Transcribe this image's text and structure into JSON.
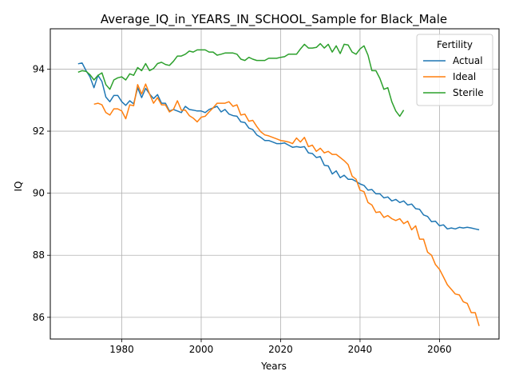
{
  "chart_data": {
    "type": "line",
    "title": "Average_IQ_in_YEARS_IN_SCHOOL_Sample for Black_Male",
    "xlabel": "Years",
    "ylabel": "IQ",
    "xlim": [
      1962,
      2075
    ],
    "ylim": [
      85.3,
      95.3
    ],
    "xticks": [
      1980,
      2000,
      2020,
      2040,
      2060
    ],
    "yticks": [
      86,
      88,
      90,
      92,
      94
    ],
    "grid": true,
    "legend": {
      "title": "Fertility",
      "placement": "top-right"
    },
    "series": [
      {
        "name": "Actual",
        "color": "#1f77b4",
        "points": [
          [
            1969,
            94.17
          ],
          [
            1970,
            94.2
          ],
          [
            1971,
            93.95
          ],
          [
            1972,
            93.75
          ],
          [
            1973,
            93.4
          ],
          [
            1974,
            93.8
          ],
          [
            1975,
            93.6
          ],
          [
            1976,
            93.1
          ],
          [
            1977,
            92.95
          ],
          [
            1978,
            93.15
          ],
          [
            1979,
            93.15
          ],
          [
            1980,
            92.95
          ],
          [
            1981,
            92.83
          ],
          [
            1982,
            92.98
          ],
          [
            1983,
            92.88
          ],
          [
            1984,
            93.4
          ],
          [
            1985,
            93.08
          ],
          [
            1986,
            93.38
          ],
          [
            1987,
            93.2
          ],
          [
            1988,
            93.05
          ],
          [
            1989,
            93.18
          ],
          [
            1990,
            92.9
          ],
          [
            1991,
            92.9
          ],
          [
            1992,
            92.65
          ],
          [
            1993,
            92.7
          ],
          [
            1994,
            92.65
          ],
          [
            1995,
            92.6
          ],
          [
            1996,
            92.8
          ],
          [
            1997,
            92.7
          ],
          [
            1998,
            92.68
          ],
          [
            1999,
            92.65
          ],
          [
            2000,
            92.65
          ],
          [
            2001,
            92.6
          ],
          [
            2002,
            92.7
          ],
          [
            2003,
            92.75
          ],
          [
            2004,
            92.8
          ],
          [
            2005,
            92.62
          ],
          [
            2006,
            92.7
          ],
          [
            2007,
            92.55
          ],
          [
            2008,
            92.5
          ],
          [
            2009,
            92.48
          ],
          [
            2010,
            92.3
          ],
          [
            2011,
            92.28
          ],
          [
            2012,
            92.1
          ],
          [
            2013,
            92.05
          ],
          [
            2014,
            91.88
          ],
          [
            2015,
            91.8
          ],
          [
            2016,
            91.7
          ],
          [
            2017,
            91.7
          ],
          [
            2018,
            91.65
          ],
          [
            2019,
            91.6
          ],
          [
            2020,
            91.6
          ],
          [
            2021,
            91.62
          ],
          [
            2022,
            91.55
          ],
          [
            2023,
            91.48
          ],
          [
            2024,
            91.5
          ],
          [
            2025,
            91.48
          ],
          [
            2026,
            91.5
          ],
          [
            2027,
            91.3
          ],
          [
            2028,
            91.28
          ],
          [
            2029,
            91.15
          ],
          [
            2030,
            91.18
          ],
          [
            2031,
            90.9
          ],
          [
            2032,
            90.88
          ],
          [
            2033,
            90.62
          ],
          [
            2034,
            90.72
          ],
          [
            2035,
            90.5
          ],
          [
            2036,
            90.58
          ],
          [
            2037,
            90.45
          ],
          [
            2038,
            90.45
          ],
          [
            2039,
            90.38
          ],
          [
            2040,
            90.3
          ],
          [
            2041,
            90.25
          ],
          [
            2042,
            90.1
          ],
          [
            2043,
            90.12
          ],
          [
            2044,
            89.98
          ],
          [
            2045,
            89.98
          ],
          [
            2046,
            89.85
          ],
          [
            2047,
            89.88
          ],
          [
            2048,
            89.75
          ],
          [
            2049,
            89.8
          ],
          [
            2050,
            89.7
          ],
          [
            2051,
            89.75
          ],
          [
            2052,
            89.62
          ],
          [
            2053,
            89.65
          ],
          [
            2054,
            89.5
          ],
          [
            2055,
            89.48
          ],
          [
            2056,
            89.3
          ],
          [
            2057,
            89.25
          ],
          [
            2058,
            89.08
          ],
          [
            2059,
            89.1
          ],
          [
            2060,
            88.95
          ],
          [
            2061,
            88.98
          ],
          [
            2062,
            88.85
          ],
          [
            2063,
            88.88
          ],
          [
            2064,
            88.85
          ],
          [
            2065,
            88.9
          ],
          [
            2066,
            88.88
          ],
          [
            2067,
            88.9
          ],
          [
            2068,
            88.88
          ],
          [
            2069,
            88.85
          ],
          [
            2070,
            88.82
          ]
        ]
      },
      {
        "name": "Ideal",
        "color": "#ff7f0e",
        "points": [
          [
            1973,
            92.87
          ],
          [
            1974,
            92.9
          ],
          [
            1975,
            92.85
          ],
          [
            1976,
            92.6
          ],
          [
            1977,
            92.52
          ],
          [
            1978,
            92.72
          ],
          [
            1979,
            92.72
          ],
          [
            1980,
            92.65
          ],
          [
            1981,
            92.4
          ],
          [
            1982,
            92.85
          ],
          [
            1983,
            92.82
          ],
          [
            1984,
            93.5
          ],
          [
            1985,
            93.2
          ],
          [
            1986,
            93.52
          ],
          [
            1987,
            93.2
          ],
          [
            1988,
            92.9
          ],
          [
            1989,
            93.08
          ],
          [
            1990,
            92.85
          ],
          [
            1991,
            92.85
          ],
          [
            1992,
            92.62
          ],
          [
            1993,
            92.7
          ],
          [
            1994,
            92.98
          ],
          [
            1995,
            92.68
          ],
          [
            1996,
            92.68
          ],
          [
            1997,
            92.5
          ],
          [
            1998,
            92.42
          ],
          [
            1999,
            92.3
          ],
          [
            2000,
            92.45
          ],
          [
            2001,
            92.48
          ],
          [
            2002,
            92.62
          ],
          [
            2003,
            92.75
          ],
          [
            2004,
            92.9
          ],
          [
            2005,
            92.9
          ],
          [
            2006,
            92.9
          ],
          [
            2007,
            92.95
          ],
          [
            2008,
            92.8
          ],
          [
            2009,
            92.85
          ],
          [
            2010,
            92.52
          ],
          [
            2011,
            92.55
          ],
          [
            2012,
            92.32
          ],
          [
            2013,
            92.35
          ],
          [
            2014,
            92.15
          ],
          [
            2015,
            91.98
          ],
          [
            2016,
            91.88
          ],
          [
            2017,
            91.85
          ],
          [
            2018,
            91.8
          ],
          [
            2019,
            91.75
          ],
          [
            2020,
            91.7
          ],
          [
            2021,
            91.68
          ],
          [
            2022,
            91.65
          ],
          [
            2023,
            91.6
          ],
          [
            2024,
            91.78
          ],
          [
            2025,
            91.65
          ],
          [
            2026,
            91.8
          ],
          [
            2027,
            91.5
          ],
          [
            2028,
            91.55
          ],
          [
            2029,
            91.35
          ],
          [
            2030,
            91.45
          ],
          [
            2031,
            91.3
          ],
          [
            2032,
            91.35
          ],
          [
            2033,
            91.25
          ],
          [
            2034,
            91.25
          ],
          [
            2035,
            91.15
          ],
          [
            2036,
            91.05
          ],
          [
            2037,
            90.92
          ],
          [
            2038,
            90.55
          ],
          [
            2039,
            90.45
          ],
          [
            2040,
            90.1
          ],
          [
            2041,
            90.05
          ],
          [
            2042,
            89.7
          ],
          [
            2043,
            89.62
          ],
          [
            2044,
            89.38
          ],
          [
            2045,
            89.4
          ],
          [
            2046,
            89.22
          ],
          [
            2047,
            89.28
          ],
          [
            2048,
            89.18
          ],
          [
            2049,
            89.12
          ],
          [
            2050,
            89.18
          ],
          [
            2051,
            89.02
          ],
          [
            2052,
            89.1
          ],
          [
            2053,
            88.82
          ],
          [
            2054,
            88.95
          ],
          [
            2055,
            88.52
          ],
          [
            2056,
            88.52
          ],
          [
            2057,
            88.1
          ],
          [
            2058,
            88.0
          ],
          [
            2059,
            87.7
          ],
          [
            2060,
            87.55
          ],
          [
            2061,
            87.3
          ],
          [
            2062,
            87.05
          ],
          [
            2063,
            86.9
          ],
          [
            2064,
            86.75
          ],
          [
            2065,
            86.72
          ],
          [
            2066,
            86.5
          ],
          [
            2067,
            86.45
          ],
          [
            2068,
            86.15
          ],
          [
            2069,
            86.15
          ],
          [
            2070,
            85.72
          ]
        ]
      },
      {
        "name": "Sterile",
        "color": "#2ca02c",
        "points": [
          [
            1969,
            93.9
          ],
          [
            1970,
            93.95
          ],
          [
            1971,
            93.93
          ],
          [
            1972,
            93.82
          ],
          [
            1973,
            93.65
          ],
          [
            1974,
            93.8
          ],
          [
            1975,
            93.88
          ],
          [
            1976,
            93.5
          ],
          [
            1977,
            93.35
          ],
          [
            1978,
            93.65
          ],
          [
            1979,
            93.72
          ],
          [
            1980,
            93.75
          ],
          [
            1981,
            93.65
          ],
          [
            1982,
            93.85
          ],
          [
            1983,
            93.8
          ],
          [
            1984,
            94.05
          ],
          [
            1985,
            93.95
          ],
          [
            1986,
            94.18
          ],
          [
            1987,
            93.95
          ],
          [
            1988,
            94.02
          ],
          [
            1989,
            94.18
          ],
          [
            1990,
            94.22
          ],
          [
            1991,
            94.15
          ],
          [
            1992,
            94.12
          ],
          [
            1993,
            94.25
          ],
          [
            1994,
            94.42
          ],
          [
            1995,
            94.42
          ],
          [
            1996,
            94.48
          ],
          [
            1997,
            94.58
          ],
          [
            1998,
            94.55
          ],
          [
            1999,
            94.62
          ],
          [
            2000,
            94.62
          ],
          [
            2001,
            94.62
          ],
          [
            2002,
            94.55
          ],
          [
            2003,
            94.55
          ],
          [
            2004,
            94.45
          ],
          [
            2005,
            94.48
          ],
          [
            2006,
            94.52
          ],
          [
            2007,
            94.52
          ],
          [
            2008,
            94.52
          ],
          [
            2009,
            94.48
          ],
          [
            2010,
            94.32
          ],
          [
            2011,
            94.28
          ],
          [
            2012,
            94.38
          ],
          [
            2013,
            94.32
          ],
          [
            2014,
            94.28
          ],
          [
            2015,
            94.28
          ],
          [
            2016,
            94.28
          ],
          [
            2017,
            94.35
          ],
          [
            2018,
            94.35
          ],
          [
            2019,
            94.35
          ],
          [
            2020,
            94.38
          ],
          [
            2021,
            94.4
          ],
          [
            2022,
            94.48
          ],
          [
            2023,
            94.48
          ],
          [
            2024,
            94.48
          ],
          [
            2025,
            94.65
          ],
          [
            2026,
            94.8
          ],
          [
            2027,
            94.68
          ],
          [
            2028,
            94.68
          ],
          [
            2029,
            94.7
          ],
          [
            2030,
            94.82
          ],
          [
            2031,
            94.68
          ],
          [
            2032,
            94.8
          ],
          [
            2033,
            94.55
          ],
          [
            2034,
            94.75
          ],
          [
            2035,
            94.5
          ],
          [
            2036,
            94.8
          ],
          [
            2037,
            94.78
          ],
          [
            2038,
            94.55
          ],
          [
            2039,
            94.48
          ],
          [
            2040,
            94.65
          ],
          [
            2041,
            94.75
          ],
          [
            2042,
            94.45
          ],
          [
            2043,
            93.95
          ],
          [
            2044,
            93.95
          ],
          [
            2045,
            93.7
          ],
          [
            2046,
            93.35
          ],
          [
            2047,
            93.4
          ],
          [
            2048,
            92.95
          ],
          [
            2049,
            92.65
          ],
          [
            2050,
            92.48
          ],
          [
            2051,
            92.68
          ]
        ]
      }
    ]
  }
}
